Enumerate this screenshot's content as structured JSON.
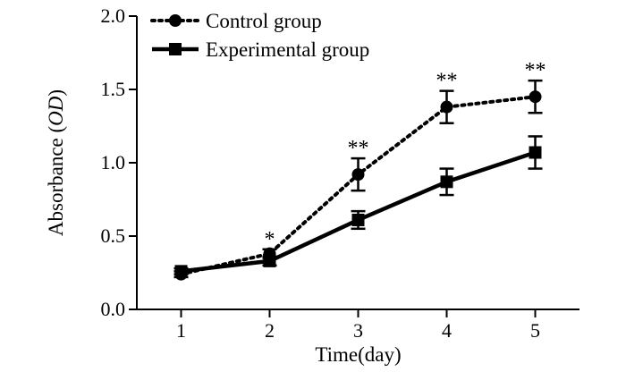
{
  "chart_data": {
    "type": "line",
    "title": "",
    "xlabel": "Time(day)",
    "ylabel_main": "Absorbance (",
    "ylabel_italic": "OD",
    "ylabel_close": ")",
    "x": [
      1,
      2,
      3,
      4,
      5
    ],
    "x_tick_labels": [
      "1",
      "2",
      "3",
      "4",
      "5"
    ],
    "xlim": [
      0.5,
      5.5
    ],
    "ylim": [
      0.0,
      2.0
    ],
    "y_ticks": [
      0.0,
      0.5,
      1.0,
      1.5,
      2.0
    ],
    "y_tick_labels": [
      "0.0",
      "0.5",
      "1.0",
      "1.5",
      "2.0"
    ],
    "grid": false,
    "legend_position": "top-left",
    "series": [
      {
        "name": "Control group",
        "marker": "circle",
        "line_style": "dotted",
        "color": "#000000",
        "values": [
          0.24,
          0.38,
          0.92,
          1.38,
          1.45
        ],
        "errors": [
          0.02,
          0.03,
          0.11,
          0.11,
          0.11
        ]
      },
      {
        "name": "Experimental group",
        "marker": "square",
        "line_style": "solid",
        "color": "#000000",
        "values": [
          0.26,
          0.33,
          0.61,
          0.87,
          1.07
        ],
        "errors": [
          0.02,
          0.03,
          0.06,
          0.09,
          0.11
        ]
      }
    ],
    "annotations": [
      {
        "x": 2,
        "text": "*"
      },
      {
        "x": 3,
        "text": "**"
      },
      {
        "x": 4,
        "text": "**"
      },
      {
        "x": 5,
        "text": "**"
      }
    ]
  }
}
